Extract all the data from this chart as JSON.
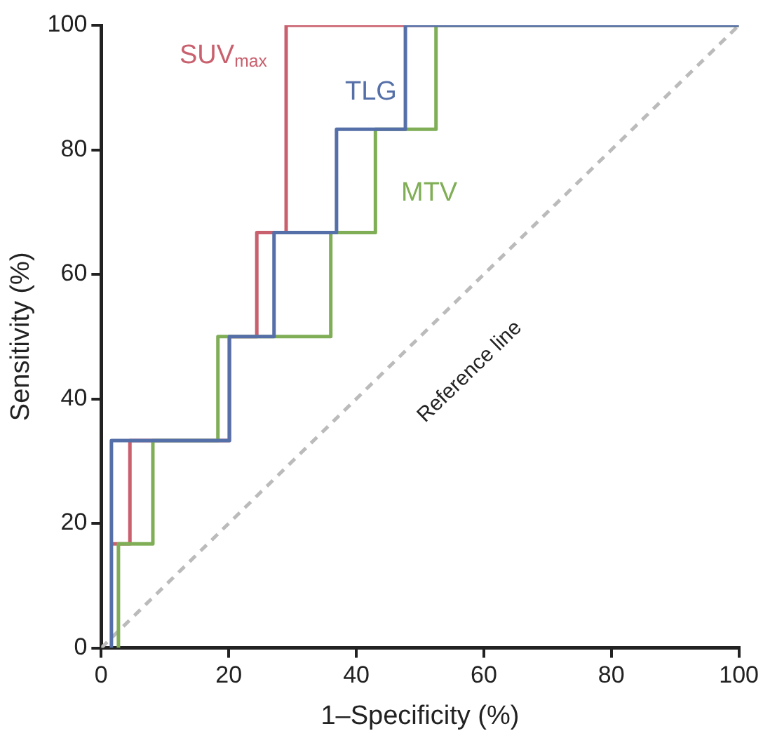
{
  "chart_data": {
    "type": "line",
    "xlabel": "1–Specificity (%)",
    "ylabel": "Sensitivity (%)",
    "xlim": [
      0,
      100
    ],
    "ylim": [
      0,
      100
    ],
    "xticks": [
      0,
      20,
      40,
      60,
      80,
      100
    ],
    "yticks": [
      0,
      20,
      40,
      60,
      80,
      100
    ],
    "grid": false,
    "legend": false,
    "marker": "none",
    "series": [
      {
        "name": "SUV$_{max}$",
        "color": "#c9606e",
        "x": [
          1.6,
          4.5,
          4.5,
          20.1,
          20.1,
          24.4,
          24.4,
          29,
          29,
          100
        ],
        "values": [
          16.7,
          16.7,
          33.3,
          33.3,
          50,
          50,
          66.7,
          66.7,
          100,
          100
        ]
      },
      {
        "name": "TLG",
        "color": "#5570a8",
        "x": [
          1.6,
          1.6,
          20.1,
          20.1,
          27.1,
          27.1,
          36.9,
          36.9,
          47.7,
          47.7,
          100
        ],
        "values": [
          0,
          33.3,
          33.3,
          50,
          50,
          66.7,
          66.7,
          83.3,
          83.3,
          100,
          100
        ]
      },
      {
        "name": "MTV",
        "color": "#7fae56",
        "x": [
          2.7,
          2.7,
          8.1,
          8.1,
          18.3,
          18.3,
          36,
          36,
          43,
          43,
          52.5,
          52.5,
          100
        ],
        "values": [
          0,
          16.7,
          16.7,
          33.3,
          33.3,
          50,
          50,
          66.7,
          66.7,
          83.3,
          83.3,
          100,
          100
        ]
      },
      {
        "name": "Reference line",
        "color": "#bbbbbb",
        "line_style": "dashed",
        "x": [
          0,
          100
        ],
        "values": [
          0,
          100
        ]
      }
    ]
  }
}
